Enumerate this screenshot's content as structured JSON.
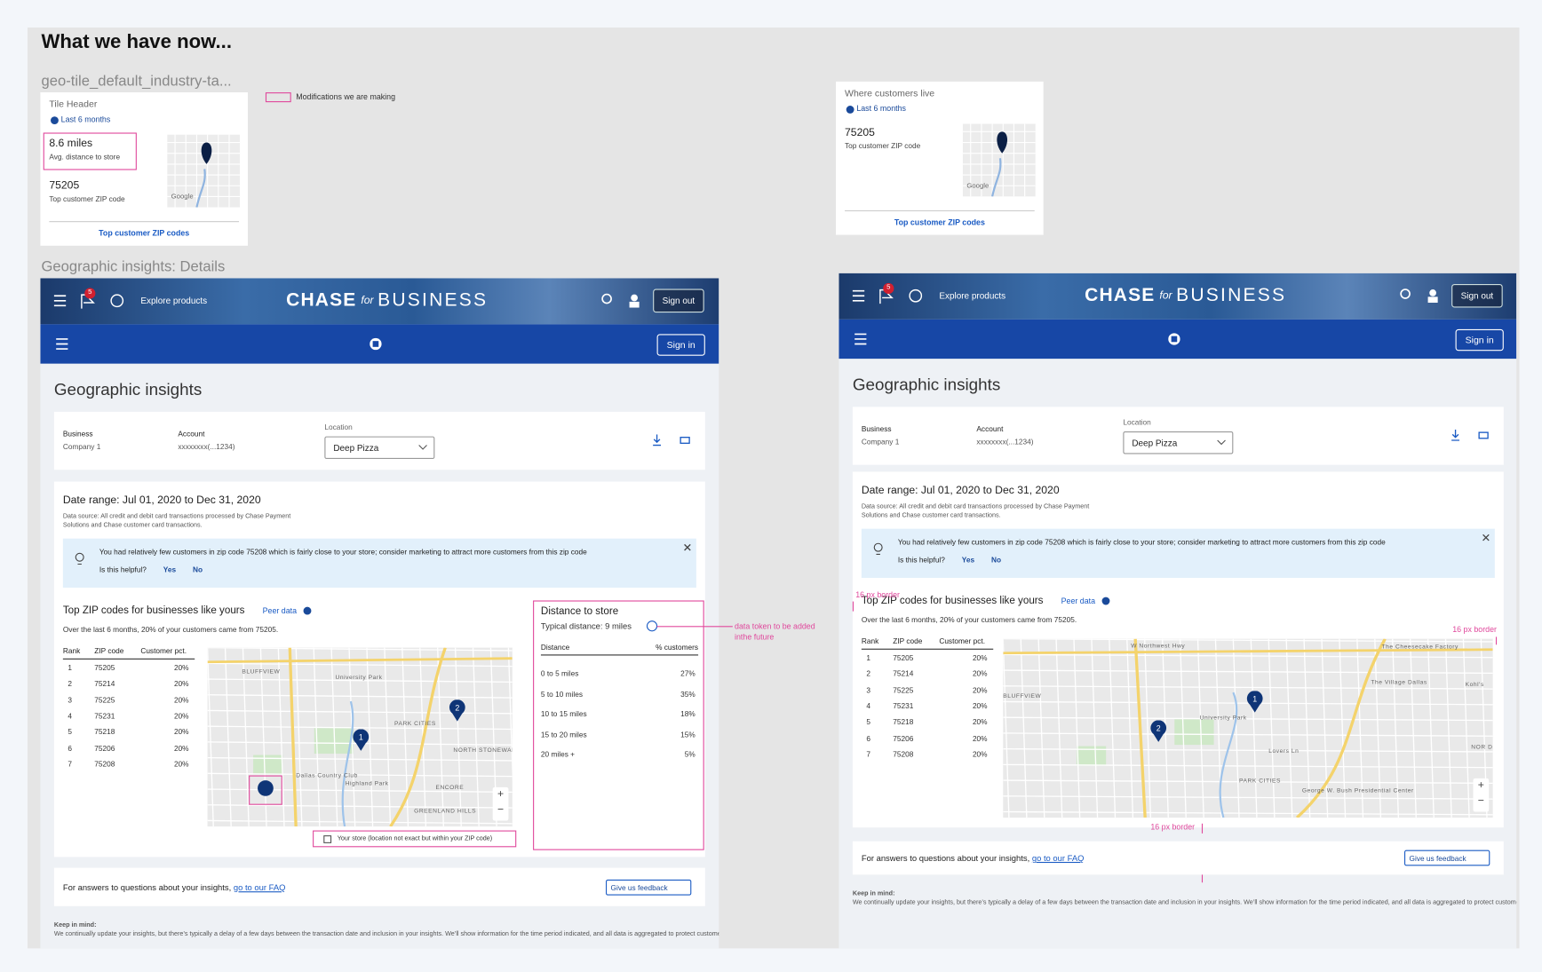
{
  "heading": "What we have now...",
  "tile_label": "geo-tile_default_industry-ta...",
  "legend_note": "Modifications we are making",
  "section_label": "Geographic insights: Details",
  "map_brand": "Google",
  "tile_left": {
    "header": "Tile Header",
    "period": "Last 6 months",
    "metric1_value": "8.6 miles",
    "metric1_label": "Avg. distance to store",
    "metric2_value": "75205",
    "metric2_label": "Top customer ZIP code",
    "link": "Top customer ZIP codes"
  },
  "tile_right": {
    "header": "Where customers live",
    "period": "Last 6 months",
    "metric_value": "75205",
    "metric_label": "Top customer ZIP code",
    "link": "Top customer ZIP codes"
  },
  "nav": {
    "explore": "Explore products",
    "brand_bold": "CHASE",
    "brand_for": "for",
    "brand_business": "BUSINESS",
    "badge": "5",
    "sign_out": "Sign out",
    "sign_in": "Sign in"
  },
  "page": {
    "title": "Geographic insights",
    "business_label": "Business",
    "business_value": "Company 1",
    "account_label": "Account",
    "account_value": "xxxxxxxx(...1234)",
    "location_label": "Location",
    "location_value": "Deep Pizza",
    "date_range": "Date range: Jul 01, 2020 to Dec 31, 2020",
    "data_source": "Data source: All credit and debit card transactions processed by Chase Payment Solutions and Chase customer card transactions.",
    "tip": "You had relatively few customers in zip code 75208 which is fairly close to your store; consider marketing to attract more customers from this zip code",
    "helpful": "Is this helpful?",
    "yes": "Yes",
    "no": "No",
    "top_title": "Top ZIP codes for businesses like yours",
    "peer": "Peer data",
    "subtitle": "Over the last 6 months, 20% of your customers came from 75205.",
    "table": {
      "columns": [
        "Rank",
        "ZIP code",
        "Customer pct."
      ],
      "rows": [
        [
          "1",
          "75205",
          "20%"
        ],
        [
          "2",
          "75214",
          "20%"
        ],
        [
          "3",
          "75225",
          "20%"
        ],
        [
          "4",
          "75231",
          "20%"
        ],
        [
          "5",
          "75218",
          "20%"
        ],
        [
          "6",
          "75206",
          "20%"
        ],
        [
          "7",
          "75208",
          "20%"
        ]
      ]
    },
    "markers": [
      "1",
      "2"
    ],
    "zoom_in": "+",
    "zoom_out": "−",
    "faq_text": "For answers to questions about your insights,",
    "faq_link": "go to our FAQ",
    "feedback": "Give us feedback",
    "keep_label": "Keep in mind:",
    "keep_text": "We continually update your insights, but there’s typically a delay of a few days between the transaction date and inclusion in your insights. We’ll show information for the time period indicated, and all data is aggregated to protect customer privacy."
  },
  "distance": {
    "title": "Distance to store",
    "typical": "Typical distance: 9 miles",
    "columns": [
      "Distance",
      "% customers"
    ],
    "rows": [
      [
        "0 to 5 miles",
        "27%"
      ],
      [
        "5 to 10 miles",
        "35%"
      ],
      [
        "10 to 15 miles",
        "18%"
      ],
      [
        "15 to 20 miles",
        "15%"
      ],
      [
        "20 miles +",
        "5%"
      ]
    ]
  },
  "map_legend": "Your store (location not exact but within your ZIP code)",
  "map_labels_left": [
    "BLUFFVIEW",
    "University Park",
    "PARK CITIES",
    "Dallas Country Club",
    "Highland Park",
    "NORTH STONEWALL TERRACE",
    "ENCORE",
    "GREENLAND HILLS"
  ],
  "map_labels_right": [
    "W Northwest Hwy",
    "The Cheesecake Factory",
    "BLUFFVIEW",
    "The Village Dallas",
    "Kohl's",
    "University Park",
    "Lovers Ln",
    "PARK CITIES",
    "George W. Bush Presidential Center",
    "NOR DA"
  ],
  "annotations": {
    "token": "data token to be added inthe future",
    "border": "16 px border"
  }
}
